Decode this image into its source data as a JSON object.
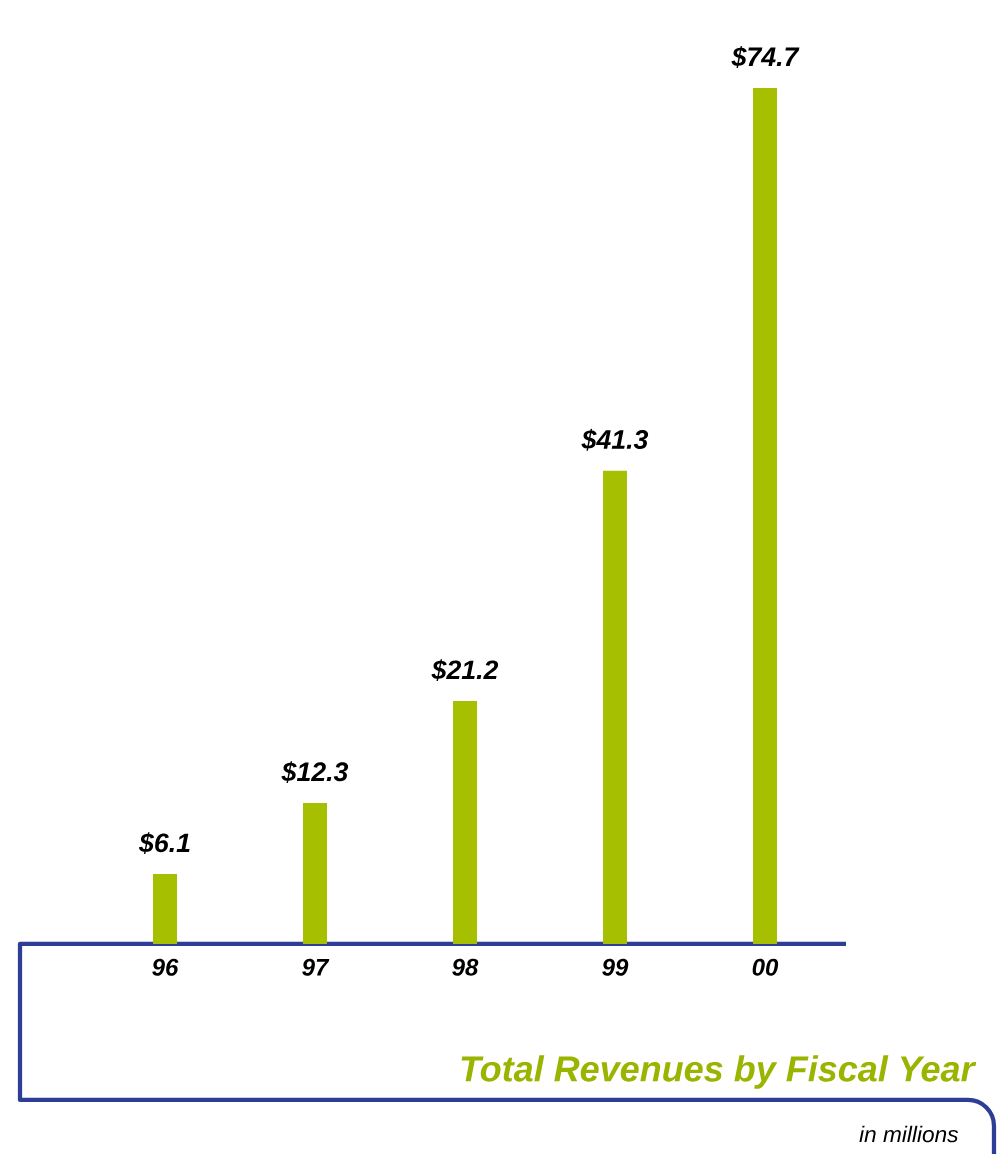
{
  "chart_data": {
    "type": "bar",
    "title": "Total Revenues by Fiscal Year",
    "subtitle": "in millions",
    "categories": [
      "96",
      "97",
      "98",
      "99",
      "00"
    ],
    "values": [
      6.1,
      12.3,
      21.2,
      41.3,
      74.7
    ],
    "value_labels": [
      "$6.1",
      "$12.3",
      "$21.2",
      "$41.3",
      "$74.7"
    ],
    "color": "#a6bf00"
  }
}
